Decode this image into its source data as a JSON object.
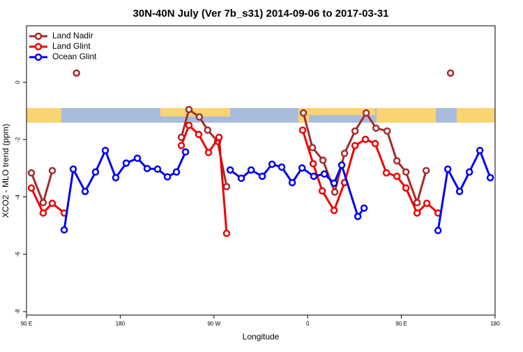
{
  "chart_data": {
    "type": "line",
    "title": "30N-40N July (Ver 7b_s31)   2014-09-06 to 2017-03-31",
    "x_label": "Longitude",
    "y_label": "XCO2 - MLO trend (ppm)",
    "xlim": [
      90,
      540
    ],
    "ylim": [
      -8.12,
      1.97
    ],
    "xticks": [
      {
        "value": 90,
        "label": "90 E"
      },
      {
        "value": 180,
        "label": "180"
      },
      {
        "value": 270,
        "label": "90 W"
      },
      {
        "value": 360,
        "label": "0"
      },
      {
        "value": 450,
        "label": "90 E"
      },
      {
        "value": 540,
        "label": "180"
      }
    ],
    "yticks": [
      0,
      -2,
      -4,
      -6,
      -8
    ],
    "legend": "top-left",
    "series": [
      {
        "name": "Land Nadir",
        "color": "#a52a2a",
        "x": [
          94.7,
          106,
          114.8,
          null,
          138,
          null,
          238.7,
          246,
          256,
          264,
          273.5,
          282.2,
          null,
          355.9,
          364.6,
          374.7,
          386,
          395.4,
          405.5,
          416.2,
          425.6,
          436.3,
          445.7,
          454.4,
          465.1,
          473.8,
          null,
          497.2
        ],
        "values": [
          -3.16,
          -4.2,
          -3.08,
          null,
          0.32,
          null,
          -1.92,
          -0.95,
          -1.21,
          -1.67,
          -2.06,
          -3.64,
          null,
          -1.07,
          -2.28,
          -2.72,
          -3.83,
          -2.48,
          -1.7,
          -1.07,
          -1.6,
          -1.7,
          -2.74,
          -3.13,
          -4.2,
          -3.08,
          null,
          0.32
        ]
      },
      {
        "name": "Land Glint",
        "color": "#ee0000",
        "x": [
          94.7,
          106,
          114.8,
          126.2,
          null,
          238.7,
          246,
          255.4,
          264.8,
          274.9,
          282.2,
          null,
          355.2,
          365.3,
          374,
          385.4,
          395.4,
          405.5,
          415.5,
          424.9,
          435.6,
          445.7,
          454.4,
          465.1,
          474.5,
          485.2
        ],
        "values": [
          -3.69,
          -4.56,
          -4.22,
          -4.56,
          null,
          -2.21,
          -1.5,
          -1.82,
          -2.45,
          -1.92,
          -5.27,
          null,
          -1.67,
          -2.84,
          -3.79,
          -4.47,
          -3.5,
          -2.21,
          -1.99,
          -2.14,
          -3.16,
          -3.28,
          -3.69,
          -4.56,
          -4.22,
          -4.56
        ]
      },
      {
        "name": "Ocean Glint",
        "color": "#0000ee",
        "x": [
          126.2,
          134.9,
          146.3,
          156.3,
          165.7,
          175.7,
          185.8,
          196.5,
          205.9,
          215.9,
          225.3,
          234,
          242.7,
          null,
          285.6,
          296.3,
          305.7,
          316.4,
          325.8,
          335.1,
          345.2,
          354.6,
          365.9,
          376,
          385.4,
          392.7,
          408.2,
          414.2,
          null,
          485.2,
          494.6,
          505.9,
          515.3,
          525.4,
          535.4
        ],
        "values": [
          -5.15,
          -3.03,
          -3.81,
          -3.13,
          -2.38,
          -3.33,
          -2.82,
          -2.65,
          -3.01,
          -3.03,
          -3.3,
          -3.13,
          -2.43,
          null,
          -3.06,
          -3.35,
          -3.06,
          -3.28,
          -2.86,
          -2.96,
          -3.5,
          -2.99,
          -3.28,
          -3.2,
          -3.52,
          -2.89,
          -4.68,
          -4.39,
          null,
          -5.17,
          -3.03,
          -3.81,
          -3.13,
          -2.38,
          -3.33
        ]
      }
    ]
  }
}
